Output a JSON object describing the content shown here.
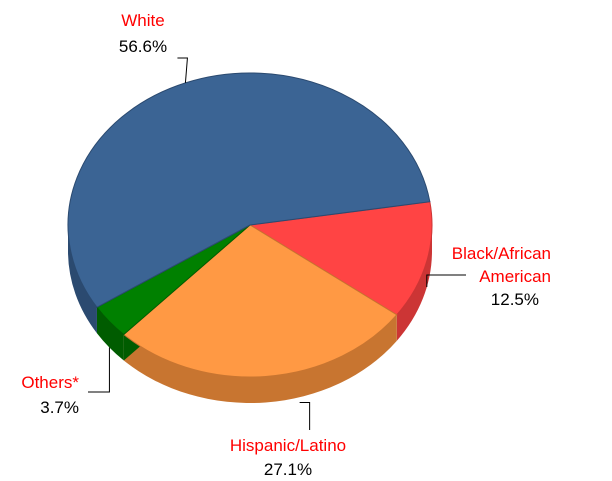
{
  "chart_data": {
    "type": "pie",
    "three_d": true,
    "legend": "none",
    "start_angle_deg": 8.8,
    "slices": [
      {
        "label": "Black/African American",
        "label_lines": [
          "Black/African",
          "American"
        ],
        "value": 12.5,
        "value_text": "12.5%",
        "color": "#ff4444",
        "side_color": "#cc3535"
      },
      {
        "label": "Hispanic/Latino",
        "label_lines": [
          "Hispanic/Latino"
        ],
        "value": 27.1,
        "value_text": "27.1%",
        "color": "#ff9944",
        "side_color": "#c87530"
      },
      {
        "label": "Others*",
        "label_lines": [
          "Others*"
        ],
        "value": 3.7,
        "value_text": "3.7%",
        "color": "#008000",
        "side_color": "#005c00"
      },
      {
        "label": "White",
        "label_lines": [
          "White"
        ],
        "value": 56.6,
        "value_text": "56.6%",
        "color": "#3b6494",
        "side_color": "#2b4a70"
      }
    ]
  }
}
